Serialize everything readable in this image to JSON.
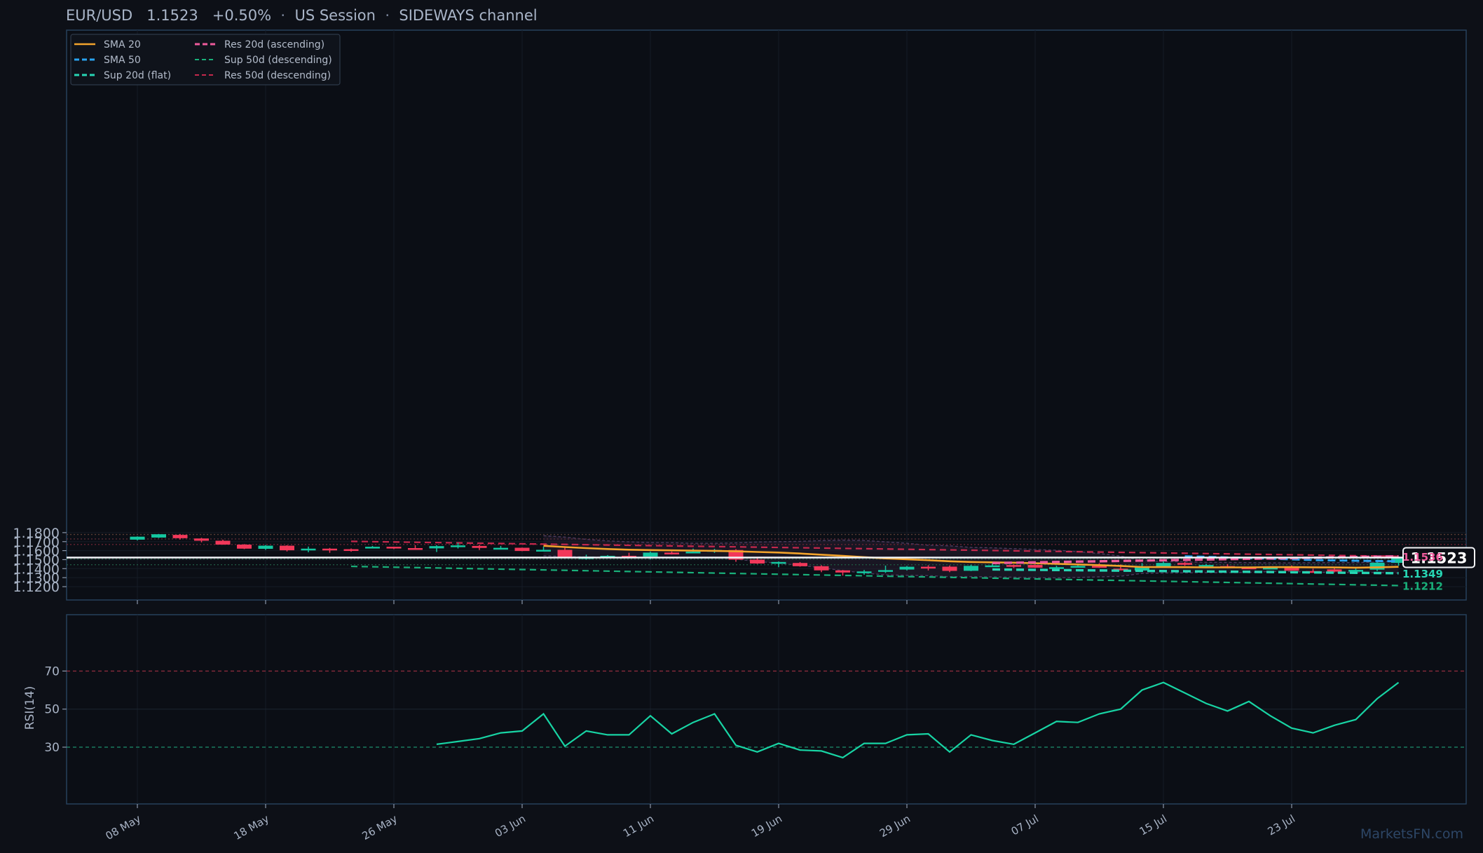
{
  "header": {
    "pair": "EUR/USD",
    "price": "1.1523",
    "change": "+0.50%",
    "session": "US Session",
    "pattern": "SIDEWAYS channel"
  },
  "watermark": "MarketsFN.com",
  "colors": {
    "background": "#0d1017",
    "up": "#14c7a0",
    "down": "#f2385a",
    "sma20": "#f2a32c",
    "sma50": "#29a3f0",
    "sup_flat": "#27d6b4",
    "res_asc": "#ee5b9c",
    "sup50_desc": "#19b07a",
    "res50_desc": "#c5284d",
    "rsi": "#18d4a4"
  },
  "chart_data": [
    {
      "type": "candlestick",
      "title": "",
      "ylim": [
        1.118,
        1.1835
      ],
      "y_ticks": [
        "1.1200",
        "1.1300",
        "1.1400",
        "1.1500",
        "1.1600",
        "1.1700",
        "1.1800"
      ],
      "x_tick_labels": [
        {
          "index": 0,
          "label": "08 May"
        },
        {
          "index": 6,
          "label": "18 May"
        },
        {
          "index": 12,
          "label": "26 May"
        },
        {
          "index": 18,
          "label": "03 Jun"
        },
        {
          "index": 24,
          "label": "11 Jun"
        },
        {
          "index": 30,
          "label": "19 Jun"
        },
        {
          "index": 36,
          "label": "29 Jun"
        },
        {
          "index": 42,
          "label": "07 Jul"
        },
        {
          "index": 48,
          "label": "15 Jul"
        },
        {
          "index": 54,
          "label": "23 Jul"
        }
      ],
      "candles": [
        [
          1.1722,
          1.1758,
          1.1713,
          1.1755
        ],
        [
          1.1745,
          1.1785,
          1.174,
          1.1782
        ],
        [
          1.1775,
          1.1785,
          1.1723,
          1.1738
        ],
        [
          1.1735,
          1.1742,
          1.1692,
          1.171
        ],
        [
          1.171,
          1.1722,
          1.1665,
          1.1667
        ],
        [
          1.1667,
          1.1673,
          1.1617,
          1.1622
        ],
        [
          1.162,
          1.1662,
          1.1608,
          1.1655
        ],
        [
          1.1655,
          1.166,
          1.1591,
          1.1604
        ],
        [
          1.1605,
          1.1645,
          1.1582,
          1.1622
        ],
        [
          1.1622,
          1.163,
          1.1576,
          1.1616
        ],
        [
          1.1616,
          1.1624,
          1.1588,
          1.1601
        ],
        [
          1.1637,
          1.1652,
          1.1629,
          1.1643
        ],
        [
          1.1643,
          1.1644,
          1.1617,
          1.1631
        ],
        [
          1.1628,
          1.1661,
          1.1618,
          1.1626
        ],
        [
          1.1625,
          1.1661,
          1.1585,
          1.165
        ],
        [
          1.165,
          1.1686,
          1.1624,
          1.1658
        ],
        [
          1.1652,
          1.1665,
          1.1607,
          1.163
        ],
        [
          1.163,
          1.1652,
          1.1612,
          1.1631
        ],
        [
          1.1632,
          1.1634,
          1.1594,
          1.1596
        ],
        [
          1.1597,
          1.1645,
          1.1592,
          1.1609
        ],
        [
          1.1609,
          1.1645,
          1.1514,
          1.1518
        ],
        [
          1.1508,
          1.1555,
          1.15,
          1.1533
        ],
        [
          1.1534,
          1.1551,
          1.1525,
          1.1542
        ],
        [
          1.1542,
          1.1576,
          1.153,
          1.1534
        ],
        [
          1.1534,
          1.159,
          1.1502,
          1.1578
        ],
        [
          1.1578,
          1.159,
          1.1557,
          1.1567
        ],
        [
          1.1575,
          1.1622,
          1.1571,
          1.1589
        ],
        [
          1.1588,
          1.162,
          1.1575,
          1.1607
        ],
        [
          1.1607,
          1.1617,
          1.1476,
          1.15
        ],
        [
          1.15,
          1.1528,
          1.1452,
          1.1457
        ],
        [
          1.1457,
          1.148,
          1.1416,
          1.1474
        ],
        [
          1.1463,
          1.1473,
          1.1422,
          1.1427
        ],
        [
          1.1427,
          1.1438,
          1.1361,
          1.1381
        ],
        [
          1.1381,
          1.1385,
          1.1323,
          1.1357
        ],
        [
          1.1359,
          1.1386,
          1.1332,
          1.1369
        ],
        [
          1.1369,
          1.1434,
          1.1353,
          1.1384
        ],
        [
          1.139,
          1.143,
          1.138,
          1.1421
        ],
        [
          1.1421,
          1.1438,
          1.138,
          1.142
        ],
        [
          1.1422,
          1.1435,
          1.1361,
          1.1375
        ],
        [
          1.1376,
          1.1443,
          1.1372,
          1.1431
        ],
        [
          1.143,
          1.1473,
          1.142,
          1.1436
        ],
        [
          1.144,
          1.1446,
          1.1407,
          1.1439
        ],
        [
          1.1441,
          1.1445,
          1.1407,
          1.1411
        ],
        [
          1.1411,
          1.1433,
          1.1388,
          1.1416
        ],
        [
          1.1416,
          1.1448,
          1.1413,
          1.143
        ],
        [
          1.143,
          1.1461,
          1.1408,
          1.1413
        ],
        [
          1.14,
          1.1447,
          1.1381,
          1.1381
        ],
        [
          1.1379,
          1.1462,
          1.1374,
          1.1418
        ],
        [
          1.1418,
          1.1482,
          1.141,
          1.1463
        ],
        [
          1.1463,
          1.1474,
          1.1432,
          1.1443
        ],
        [
          1.1436,
          1.1453,
          1.1429,
          1.144
        ],
        [
          1.1428,
          1.145,
          1.1404,
          1.1414
        ],
        [
          1.1413,
          1.1416,
          1.1397,
          1.1398
        ],
        [
          1.1398,
          1.1422,
          1.1394,
          1.1411
        ],
        [
          1.1411,
          1.1436,
          1.1377,
          1.1377
        ],
        [
          1.1373,
          1.14,
          1.1364,
          1.1366
        ],
        [
          1.1392,
          1.1412,
          1.1362,
          1.1367
        ],
        [
          1.1366,
          1.1407,
          1.1352,
          1.1386
        ],
        [
          1.1389,
          1.1471,
          1.1373,
          1.1466
        ],
        [
          1.1464,
          1.1534,
          1.1433,
          1.1523
        ]
      ],
      "sma20": [
        [
          19,
          1.1654
        ],
        [
          20,
          1.164
        ],
        [
          21,
          1.1628
        ],
        [
          22,
          1.1618
        ],
        [
          23,
          1.161
        ],
        [
          24,
          1.1606
        ],
        [
          25,
          1.1603
        ],
        [
          26,
          1.16
        ],
        [
          27,
          1.1598
        ],
        [
          28,
          1.1592
        ],
        [
          29,
          1.1585
        ],
        [
          30,
          1.1579
        ],
        [
          31,
          1.1568
        ],
        [
          32,
          1.1555
        ],
        [
          33,
          1.1542
        ],
        [
          34,
          1.1528
        ],
        [
          35,
          1.1514
        ],
        [
          36,
          1.1504
        ],
        [
          37,
          1.1494
        ],
        [
          38,
          1.1482
        ],
        [
          39,
          1.1474
        ],
        [
          40,
          1.147
        ],
        [
          41,
          1.1466
        ],
        [
          42,
          1.146
        ],
        [
          43,
          1.1454
        ],
        [
          44,
          1.1447
        ],
        [
          45,
          1.1439
        ],
        [
          46,
          1.143
        ],
        [
          47,
          1.1418
        ],
        [
          48,
          1.1417
        ],
        [
          49,
          1.1416
        ],
        [
          50,
          1.1414
        ],
        [
          51,
          1.1414
        ],
        [
          52,
          1.1414
        ],
        [
          53,
          1.1416
        ],
        [
          54,
          1.1416
        ],
        [
          55,
          1.1415
        ],
        [
          56,
          1.1413
        ],
        [
          57,
          1.1411
        ],
        [
          58,
          1.1415
        ],
        [
          59,
          1.142
        ]
      ],
      "sma50": [
        [
          49,
          1.1537
        ],
        [
          52,
          1.1518
        ],
        [
          55,
          1.1496
        ],
        [
          57,
          1.1488
        ],
        [
          59,
          1.1482
        ]
      ],
      "bollinger_upper": [
        [
          19,
          1.1766
        ],
        [
          20,
          1.175
        ],
        [
          21,
          1.1725
        ],
        [
          22,
          1.1708
        ],
        [
          23,
          1.1697
        ],
        [
          24,
          1.169
        ],
        [
          25,
          1.1689
        ],
        [
          26,
          1.1682
        ],
        [
          27,
          1.1682
        ],
        [
          28,
          1.1686
        ],
        [
          29,
          1.1696
        ],
        [
          30,
          1.17
        ],
        [
          31,
          1.1703
        ],
        [
          32,
          1.1711
        ],
        [
          33,
          1.1717
        ],
        [
          34,
          1.1713
        ],
        [
          35,
          1.1697
        ],
        [
          36,
          1.1682
        ],
        [
          37,
          1.166
        ],
        [
          38,
          1.1654
        ],
        [
          39,
          1.1636
        ],
        [
          40,
          1.1631
        ],
        [
          41,
          1.1622
        ],
        [
          42,
          1.1613
        ],
        [
          43,
          1.1605
        ],
        [
          44,
          1.1589
        ],
        [
          45,
          1.1568
        ],
        [
          46,
          1.154
        ],
        [
          47,
          1.149
        ],
        [
          48,
          1.148
        ],
        [
          49,
          1.1476
        ],
        [
          50,
          1.147
        ],
        [
          51,
          1.1469
        ],
        [
          52,
          1.1467
        ],
        [
          53,
          1.1464
        ],
        [
          54,
          1.1464
        ],
        [
          55,
          1.1466
        ],
        [
          56,
          1.1467
        ],
        [
          57,
          1.1467
        ],
        [
          58,
          1.1474
        ],
        [
          59,
          1.1487
        ]
      ],
      "bollinger_lower": [
        [
          19,
          1.1543
        ],
        [
          20,
          1.1536
        ],
        [
          21,
          1.153
        ],
        [
          22,
          1.1528
        ],
        [
          23,
          1.1523
        ],
        [
          24,
          1.1521
        ],
        [
          25,
          1.1517
        ],
        [
          26,
          1.1517
        ],
        [
          27,
          1.1517
        ],
        [
          28,
          1.1505
        ],
        [
          29,
          1.148
        ],
        [
          30,
          1.146
        ],
        [
          31,
          1.1436
        ],
        [
          32,
          1.141
        ],
        [
          33,
          1.1378
        ],
        [
          34,
          1.1351
        ],
        [
          35,
          1.1331
        ],
        [
          36,
          1.1326
        ],
        [
          37,
          1.1322
        ],
        [
          38,
          1.1311
        ],
        [
          39,
          1.1312
        ],
        [
          40,
          1.1308
        ],
        [
          41,
          1.1305
        ],
        [
          42,
          1.13
        ],
        [
          43,
          1.1298
        ],
        [
          44,
          1.1303
        ],
        [
          45,
          1.1309
        ],
        [
          46,
          1.1316
        ],
        [
          47,
          1.1347
        ],
        [
          48,
          1.1352
        ],
        [
          49,
          1.1353
        ],
        [
          50,
          1.1356
        ],
        [
          51,
          1.1356
        ],
        [
          52,
          1.1358
        ],
        [
          53,
          1.1367
        ],
        [
          54,
          1.1368
        ],
        [
          55,
          1.1361
        ],
        [
          56,
          1.1357
        ],
        [
          57,
          1.1356
        ],
        [
          58,
          1.1357
        ],
        [
          59,
          1.1351
        ]
      ],
      "trendlines": [
        {
          "key": "res20",
          "from": [
            40,
            1.1462
          ],
          "to": [
            59,
            1.1537
          ],
          "color": "#ee5b9c",
          "style": "thick-dash"
        },
        {
          "key": "sup20",
          "from": [
            40,
            1.1391
          ],
          "to": [
            59,
            1.1349
          ],
          "color": "#27d6b4",
          "style": "thick-dash"
        },
        {
          "key": "res50",
          "from": [
            10,
            1.1703
          ],
          "to": [
            59,
            1.1537
          ],
          "color": "#c5284d",
          "style": "dash"
        },
        {
          "key": "sup50",
          "from": [
            10,
            1.1425
          ],
          "to": [
            59,
            1.1212
          ],
          "color": "#19b07a",
          "style": "dash"
        }
      ],
      "horizontal_levels": [
        {
          "value": 1.1779,
          "color": "#5a3d34"
        },
        {
          "value": 1.173,
          "color": "#5a2c36"
        },
        {
          "value": 1.1668,
          "color": "#6a2432"
        },
        {
          "value": 1.1507,
          "color": "#1f5640"
        },
        {
          "value": 1.1444,
          "color": "#1f5640"
        }
      ],
      "current_price": {
        "value": 1.1523,
        "label": "1.1523"
      },
      "line_end_labels": [
        {
          "value": 1.1536,
          "label": "1.1536",
          "color": "#ee5b9c"
        },
        {
          "value": 1.1349,
          "label": "1.1349",
          "color": "#27d6b4"
        },
        {
          "value": 1.1212,
          "label": "1.1212",
          "color": "#19b07a"
        }
      ],
      "legend": {
        "placement": "top-left",
        "items": [
          {
            "label": "SMA 20",
            "color": "#f2a32c",
            "style": "solid"
          },
          {
            "label": "Res 20d (ascending)",
            "color": "#ee5b9c",
            "style": "thick-dash"
          },
          {
            "label": "SMA 50",
            "color": "#29a3f0",
            "style": "thick-dash"
          },
          {
            "label": "Sup 50d (descending)",
            "color": "#19b07a",
            "style": "dash"
          },
          {
            "label": "Sup 20d (flat)",
            "color": "#27d6b4",
            "style": "thick-dash"
          },
          {
            "label": "Res 50d (descending)",
            "color": "#c5284d",
            "style": "dash"
          }
        ]
      }
    },
    {
      "type": "line",
      "ylabel": "RSI(14)",
      "ylim": [
        0,
        100
      ],
      "y_ticks": [
        "30",
        "50",
        "70"
      ],
      "overbought": 70,
      "oversold": 30,
      "series": [
        {
          "values": [
            [
              14,
              31.5
            ],
            [
              15,
              33
            ],
            [
              16,
              34.5
            ],
            [
              17,
              37.5
            ],
            [
              18,
              38.5
            ],
            [
              19,
              47.5
            ],
            [
              20,
              30.5
            ],
            [
              21,
              38.5
            ],
            [
              22,
              36.5
            ],
            [
              23,
              36.5
            ],
            [
              24,
              46.5
            ],
            [
              25,
              37
            ],
            [
              26,
              43
            ],
            [
              27,
              47.5
            ],
            [
              28,
              31
            ],
            [
              29,
              27.5
            ],
            [
              30,
              32
            ],
            [
              31,
              28.5
            ],
            [
              32,
              28
            ],
            [
              33,
              24.5
            ],
            [
              34,
              32
            ],
            [
              35,
              32
            ],
            [
              36,
              36.5
            ],
            [
              37,
              37
            ],
            [
              38,
              27.5
            ],
            [
              39,
              36.5
            ],
            [
              40,
              33.5
            ],
            [
              41,
              31.5
            ],
            [
              42,
              37.5
            ],
            [
              43,
              43.5
            ],
            [
              44,
              43
            ],
            [
              45,
              47.5
            ],
            [
              46,
              50
            ],
            [
              47,
              60
            ],
            [
              48,
              64
            ],
            [
              49,
              58.5
            ],
            [
              50,
              53
            ],
            [
              51,
              49
            ],
            [
              52,
              54
            ],
            [
              53,
              46.5
            ],
            [
              54,
              40
            ],
            [
              55,
              37.5
            ],
            [
              56,
              41.5
            ],
            [
              57,
              44.5
            ],
            [
              58,
              55.5
            ],
            [
              59,
              64
            ]
          ]
        }
      ]
    }
  ]
}
